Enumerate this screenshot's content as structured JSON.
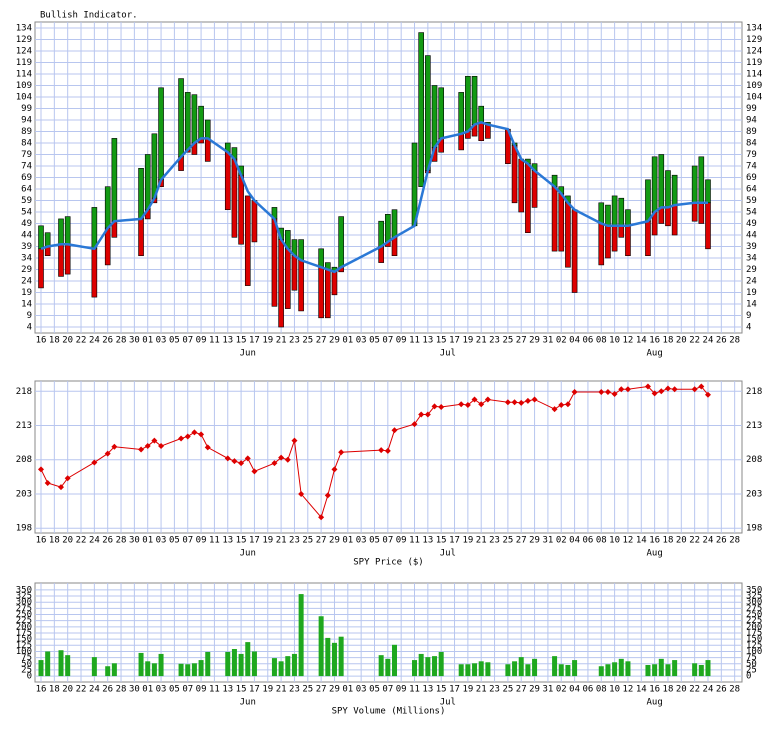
{
  "chart_data": [
    {
      "type": "range",
      "title": "Bullish Indicator.",
      "x": [
        0,
        1,
        3,
        4,
        8,
        10,
        11,
        15,
        16,
        17,
        18,
        21,
        22,
        23,
        24,
        25,
        28,
        29,
        30,
        31,
        32,
        35,
        36,
        37,
        38,
        39,
        42,
        43,
        44,
        45,
        51,
        52,
        53,
        56,
        57,
        58,
        59,
        60,
        63,
        64,
        65,
        66,
        67,
        70,
        71,
        72,
        73,
        74,
        77,
        78,
        79,
        80,
        84,
        85,
        86,
        87,
        88,
        91,
        92,
        93,
        94,
        95,
        98,
        99,
        100
      ],
      "high": [
        48,
        45,
        51,
        52,
        56,
        65,
        86,
        73,
        79,
        88,
        108,
        112,
        106,
        105,
        100,
        94,
        84,
        82,
        74,
        61,
        59,
        56,
        47,
        46,
        42,
        42,
        38,
        32,
        30,
        52,
        50,
        53,
        55,
        84,
        132,
        122,
        109,
        108,
        106,
        113,
        113,
        100,
        93,
        90,
        84,
        77,
        77,
        75,
        70,
        65,
        61,
        55,
        58,
        57,
        61,
        60,
        55,
        68,
        78,
        79,
        72,
        70,
        74,
        78,
        68
      ],
      "low": [
        21,
        35,
        26,
        27,
        17,
        31,
        43,
        35,
        51,
        58,
        65,
        72,
        80,
        79,
        84,
        76,
        55,
        43,
        40,
        22,
        41,
        13,
        4,
        12,
        20,
        11,
        8,
        8,
        18,
        28,
        32,
        39,
        35,
        48,
        65,
        71,
        76,
        80,
        81,
        86,
        87,
        85,
        86,
        75,
        58,
        54,
        45,
        56,
        37,
        37,
        30,
        19,
        31,
        34,
        37,
        43,
        35,
        35,
        44,
        49,
        48,
        44,
        50,
        49,
        38
      ],
      "average": [
        38,
        39,
        40,
        40,
        38,
        47,
        50,
        51,
        55,
        60,
        68,
        78,
        81,
        84,
        86,
        86,
        80,
        77,
        70,
        63,
        59,
        51,
        42,
        38,
        35,
        33,
        30,
        29,
        28,
        30,
        39,
        41,
        43,
        48,
        60,
        72,
        82,
        86,
        88,
        89,
        92,
        93,
        92,
        90,
        83,
        77,
        75,
        72,
        65,
        62,
        58,
        55,
        49,
        48,
        48,
        48,
        48,
        50,
        54,
        56,
        56,
        57,
        58,
        58,
        58
      ],
      "up_color": "#139a13",
      "down_color": "#dd0000",
      "line_color": "#2a78d6",
      "xlim": [
        -0.9,
        105.1
      ],
      "ylim": [
        1.4,
        136.6
      ],
      "yticks": [
        4,
        9,
        14,
        19,
        24,
        29,
        34,
        39,
        44,
        49,
        54,
        59,
        64,
        69,
        74,
        79,
        84,
        89,
        94,
        99,
        104,
        109,
        114,
        119,
        124,
        129,
        134
      ],
      "xticks": [
        {
          "value": 0,
          "label": "16"
        },
        {
          "value": 2,
          "label": "18"
        },
        {
          "value": 4,
          "label": "20"
        },
        {
          "value": 6,
          "label": "22"
        },
        {
          "value": 8,
          "label": "24"
        },
        {
          "value": 10,
          "label": "26"
        },
        {
          "value": 12,
          "label": "28"
        },
        {
          "value": 14,
          "label": "30"
        },
        {
          "value": 16,
          "label": "01"
        },
        {
          "value": 18,
          "label": "03"
        },
        {
          "value": 20,
          "label": "05"
        },
        {
          "value": 22,
          "label": "07"
        },
        {
          "value": 24,
          "label": "09"
        },
        {
          "value": 26,
          "label": "11"
        },
        {
          "value": 28,
          "label": "13"
        },
        {
          "value": 30,
          "label": "15"
        },
        {
          "value": 32,
          "label": "17"
        },
        {
          "value": 34,
          "label": "19"
        },
        {
          "value": 36,
          "label": "21"
        },
        {
          "value": 38,
          "label": "23"
        },
        {
          "value": 40,
          "label": "25"
        },
        {
          "value": 42,
          "label": "27"
        },
        {
          "value": 44,
          "label": "29"
        },
        {
          "value": 46,
          "label": "01"
        },
        {
          "value": 48,
          "label": "03"
        },
        {
          "value": 50,
          "label": "05"
        },
        {
          "value": 52,
          "label": "07"
        },
        {
          "value": 54,
          "label": "09"
        },
        {
          "value": 56,
          "label": "11"
        },
        {
          "value": 58,
          "label": "13"
        },
        {
          "value": 60,
          "label": "15"
        },
        {
          "value": 62,
          "label": "17"
        },
        {
          "value": 64,
          "label": "19"
        },
        {
          "value": 66,
          "label": "21"
        },
        {
          "value": 68,
          "label": "23"
        },
        {
          "value": 70,
          "label": "25"
        },
        {
          "value": 72,
          "label": "27"
        },
        {
          "value": 74,
          "label": "29"
        },
        {
          "value": 76,
          "label": "31"
        },
        {
          "value": 78,
          "label": "02"
        },
        {
          "value": 80,
          "label": "04"
        },
        {
          "value": 82,
          "label": "06"
        },
        {
          "value": 84,
          "label": "08"
        },
        {
          "value": 86,
          "label": "10"
        },
        {
          "value": 88,
          "label": "12"
        },
        {
          "value": 90,
          "label": "14"
        },
        {
          "value": 92,
          "label": "16"
        },
        {
          "value": 94,
          "label": "18"
        },
        {
          "value": 96,
          "label": "20"
        },
        {
          "value": 98,
          "label": "22"
        },
        {
          "value": 100,
          "label": "24"
        },
        {
          "value": 102,
          "label": "26"
        },
        {
          "value": 104,
          "label": "28"
        }
      ],
      "months": [
        {
          "value": 31,
          "label": "Jun"
        },
        {
          "value": 61,
          "label": "Jul"
        },
        {
          "value": 92,
          "label": "Aug"
        }
      ],
      "grid": true
    },
    {
      "type": "line",
      "x_label": "SPY Price ($)",
      "color": "#dd0000",
      "x": [
        0,
        1,
        3,
        4,
        8,
        10,
        11,
        15,
        16,
        17,
        18,
        21,
        22,
        23,
        24,
        25,
        28,
        29,
        30,
        31,
        32,
        35,
        36,
        37,
        38,
        39,
        42,
        43,
        44,
        45,
        51,
        52,
        53,
        56,
        57,
        58,
        59,
        60,
        63,
        64,
        65,
        66,
        67,
        70,
        71,
        72,
        73,
        74,
        77,
        78,
        79,
        80,
        84,
        85,
        86,
        87,
        88,
        91,
        92,
        93,
        94,
        95,
        98,
        99,
        100
      ],
      "values": [
        206.6,
        204.6,
        204.0,
        205.3,
        207.6,
        208.9,
        209.9,
        209.5,
        210.0,
        210.8,
        210.0,
        211.1,
        211.4,
        212.0,
        211.7,
        209.8,
        208.2,
        207.8,
        207.5,
        208.2,
        206.3,
        207.5,
        208.3,
        208.0,
        210.8,
        203.0,
        199.6,
        202.8,
        206.6,
        209.1,
        209.4,
        209.3,
        212.3,
        213.2,
        214.6,
        214.6,
        215.8,
        215.7,
        216.1,
        216.0,
        216.8,
        216.1,
        216.8,
        216.4,
        216.4,
        216.3,
        216.6,
        216.8,
        215.4,
        216.0,
        216.1,
        217.9,
        217.9,
        217.9,
        217.6,
        218.3,
        218.3,
        218.7,
        217.7,
        218.0,
        218.4,
        218.3,
        218.3,
        218.7,
        217.5
      ],
      "xlim": [
        -0.9,
        105.1
      ],
      "ylim": [
        197.3,
        219.5
      ],
      "yticks": [
        198,
        203,
        208,
        213,
        218
      ],
      "xticks": [
        {
          "value": 0,
          "label": "16"
        },
        {
          "value": 2,
          "label": "18"
        },
        {
          "value": 4,
          "label": "20"
        },
        {
          "value": 6,
          "label": "22"
        },
        {
          "value": 8,
          "label": "24"
        },
        {
          "value": 10,
          "label": "26"
        },
        {
          "value": 12,
          "label": "28"
        },
        {
          "value": 14,
          "label": "30"
        },
        {
          "value": 16,
          "label": "01"
        },
        {
          "value": 18,
          "label": "03"
        },
        {
          "value": 20,
          "label": "05"
        },
        {
          "value": 22,
          "label": "07"
        },
        {
          "value": 24,
          "label": "09"
        },
        {
          "value": 26,
          "label": "11"
        },
        {
          "value": 28,
          "label": "13"
        },
        {
          "value": 30,
          "label": "15"
        },
        {
          "value": 32,
          "label": "17"
        },
        {
          "value": 34,
          "label": "19"
        },
        {
          "value": 36,
          "label": "21"
        },
        {
          "value": 38,
          "label": "23"
        },
        {
          "value": 40,
          "label": "25"
        },
        {
          "value": 42,
          "label": "27"
        },
        {
          "value": 44,
          "label": "29"
        },
        {
          "value": 46,
          "label": "01"
        },
        {
          "value": 48,
          "label": "03"
        },
        {
          "value": 50,
          "label": "05"
        },
        {
          "value": 52,
          "label": "07"
        },
        {
          "value": 54,
          "label": "09"
        },
        {
          "value": 56,
          "label": "11"
        },
        {
          "value": 58,
          "label": "13"
        },
        {
          "value": 60,
          "label": "15"
        },
        {
          "value": 62,
          "label": "17"
        },
        {
          "value": 64,
          "label": "19"
        },
        {
          "value": 66,
          "label": "21"
        },
        {
          "value": 68,
          "label": "23"
        },
        {
          "value": 70,
          "label": "25"
        },
        {
          "value": 72,
          "label": "27"
        },
        {
          "value": 74,
          "label": "29"
        },
        {
          "value": 76,
          "label": "31"
        },
        {
          "value": 78,
          "label": "02"
        },
        {
          "value": 80,
          "label": "04"
        },
        {
          "value": 82,
          "label": "06"
        },
        {
          "value": 84,
          "label": "08"
        },
        {
          "value": 86,
          "label": "10"
        },
        {
          "value": 88,
          "label": "12"
        },
        {
          "value": 90,
          "label": "14"
        },
        {
          "value": 92,
          "label": "16"
        },
        {
          "value": 94,
          "label": "18"
        },
        {
          "value": 96,
          "label": "20"
        },
        {
          "value": 98,
          "label": "22"
        },
        {
          "value": 100,
          "label": "24"
        },
        {
          "value": 102,
          "label": "26"
        },
        {
          "value": 104,
          "label": "28"
        }
      ],
      "months": [
        {
          "value": 31,
          "label": "Jun"
        },
        {
          "value": 61,
          "label": "Jul"
        },
        {
          "value": 92,
          "label": "Aug"
        }
      ],
      "grid": true
    },
    {
      "type": "bar",
      "x_label": "SPY Volume (Millions)",
      "color": "#1fa81f",
      "x": [
        0,
        1,
        3,
        4,
        8,
        10,
        11,
        15,
        16,
        17,
        18,
        21,
        22,
        23,
        24,
        25,
        28,
        29,
        30,
        31,
        32,
        35,
        36,
        37,
        38,
        39,
        42,
        43,
        44,
        45,
        51,
        52,
        53,
        56,
        57,
        58,
        59,
        60,
        63,
        64,
        65,
        66,
        67,
        70,
        71,
        72,
        73,
        74,
        77,
        78,
        79,
        80,
        84,
        85,
        86,
        87,
        88,
        91,
        92,
        93,
        94,
        95,
        98,
        99,
        100
      ],
      "values": [
        65,
        100,
        105,
        85,
        77,
        40,
        52,
        94,
        60,
        52,
        90,
        50,
        48,
        52,
        65,
        98,
        98,
        110,
        90,
        138,
        100,
        73,
        60,
        81,
        90,
        333,
        243,
        155,
        135,
        160,
        85,
        70,
        127,
        65,
        90,
        77,
        81,
        98,
        48,
        48,
        52,
        60,
        56,
        48,
        60,
        77,
        48,
        70,
        81,
        48,
        45,
        65,
        40,
        48,
        56,
        70,
        60,
        45,
        48,
        70,
        48,
        65,
        52,
        45,
        65
      ],
      "xlim": [
        -0.9,
        105.1
      ],
      "ylim": [
        -24,
        378
      ],
      "yticks": [
        0,
        25,
        50,
        75,
        100,
        125,
        150,
        175,
        200,
        225,
        250,
        275,
        300,
        325,
        350
      ],
      "xticks": [
        {
          "value": 0,
          "label": "16"
        },
        {
          "value": 2,
          "label": "18"
        },
        {
          "value": 4,
          "label": "20"
        },
        {
          "value": 6,
          "label": "22"
        },
        {
          "value": 8,
          "label": "24"
        },
        {
          "value": 10,
          "label": "26"
        },
        {
          "value": 12,
          "label": "28"
        },
        {
          "value": 14,
          "label": "30"
        },
        {
          "value": 16,
          "label": "01"
        },
        {
          "value": 18,
          "label": "03"
        },
        {
          "value": 20,
          "label": "05"
        },
        {
          "value": 22,
          "label": "07"
        },
        {
          "value": 24,
          "label": "09"
        },
        {
          "value": 26,
          "label": "11"
        },
        {
          "value": 28,
          "label": "13"
        },
        {
          "value": 30,
          "label": "15"
        },
        {
          "value": 32,
          "label": "17"
        },
        {
          "value": 34,
          "label": "19"
        },
        {
          "value": 36,
          "label": "21"
        },
        {
          "value": 38,
          "label": "23"
        },
        {
          "value": 40,
          "label": "25"
        },
        {
          "value": 42,
          "label": "27"
        },
        {
          "value": 44,
          "label": "29"
        },
        {
          "value": 46,
          "label": "01"
        },
        {
          "value": 48,
          "label": "03"
        },
        {
          "value": 50,
          "label": "05"
        },
        {
          "value": 52,
          "label": "07"
        },
        {
          "value": 54,
          "label": "09"
        },
        {
          "value": 56,
          "label": "11"
        },
        {
          "value": 58,
          "label": "13"
        },
        {
          "value": 60,
          "label": "15"
        },
        {
          "value": 62,
          "label": "17"
        },
        {
          "value": 64,
          "label": "19"
        },
        {
          "value": 66,
          "label": "21"
        },
        {
          "value": 68,
          "label": "23"
        },
        {
          "value": 70,
          "label": "25"
        },
        {
          "value": 72,
          "label": "27"
        },
        {
          "value": 74,
          "label": "29"
        },
        {
          "value": 76,
          "label": "31"
        },
        {
          "value": 78,
          "label": "02"
        },
        {
          "value": 80,
          "label": "04"
        },
        {
          "value": 82,
          "label": "06"
        },
        {
          "value": 84,
          "label": "08"
        },
        {
          "value": 86,
          "label": "10"
        },
        {
          "value": 88,
          "label": "12"
        },
        {
          "value": 90,
          "label": "14"
        },
        {
          "value": 92,
          "label": "16"
        },
        {
          "value": 94,
          "label": "18"
        },
        {
          "value": 96,
          "label": "20"
        },
        {
          "value": 98,
          "label": "22"
        },
        {
          "value": 100,
          "label": "24"
        },
        {
          "value": 102,
          "label": "26"
        },
        {
          "value": 104,
          "label": "28"
        }
      ],
      "months": [
        {
          "value": 31,
          "label": "Jun"
        },
        {
          "value": 61,
          "label": "Jul"
        },
        {
          "value": 92,
          "label": "Aug"
        }
      ],
      "grid": true
    }
  ]
}
